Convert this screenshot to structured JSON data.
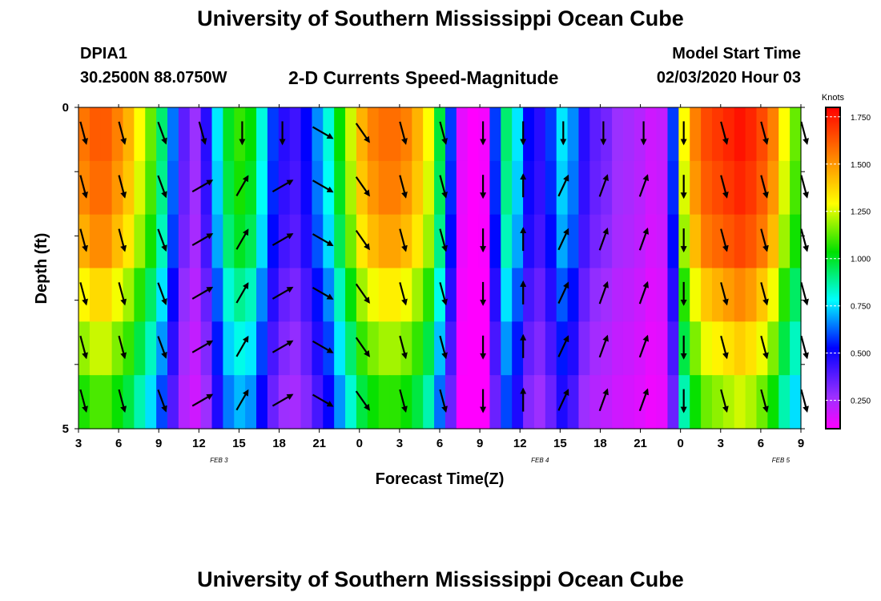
{
  "header": {
    "title": "University of Southern Mississippi Ocean Cube",
    "station_id": "DPIA1",
    "station_coords": "30.2500N 88.0750W",
    "chart_title": "2-D Currents Speed-Magnitude",
    "model_start_label": "Model Start Time",
    "model_start_value": "02/03/2020 Hour 03"
  },
  "footer": {
    "title": "University of Southern Mississippi Ocean Cube"
  },
  "colors": {
    "background": "#ffffff",
    "text": "#000000",
    "arrow": "#000000"
  },
  "chart_data": {
    "type": "heatmap",
    "title": "2-D Currents Speed-Magnitude",
    "xlabel": "Forecast Time(Z)",
    "ylabel": "Depth (ft)",
    "x_ticks": [
      "3",
      "6",
      "9",
      "12",
      "15",
      "18",
      "21",
      "0",
      "3",
      "6",
      "9",
      "12",
      "15",
      "18",
      "21",
      "0",
      "3",
      "6",
      "9"
    ],
    "date_labels": [
      {
        "label": "FEB 3",
        "at_tick": 3
      },
      {
        "label": "FEB 4",
        "at_tick": 11
      },
      {
        "label": "FEB 5",
        "at_tick": 17
      }
    ],
    "y_tick_labels": [
      "0",
      "",
      "",
      "",
      "",
      "5"
    ],
    "ylim": [
      0,
      5
    ],
    "colorbar": {
      "unit": "Knots",
      "ticks": [
        "0.250",
        "0.500",
        "0.750",
        "1.000",
        "1.250",
        "1.500",
        "1.750"
      ],
      "range": [
        0.1,
        1.8
      ]
    },
    "speed_profile_hourly": [
      1.48,
      1.55,
      1.55,
      1.45,
      1.35,
      1.2,
      1.05,
      0.85,
      0.6,
      0.38,
      0.3,
      0.45,
      0.7,
      0.92,
      1.0,
      0.95,
      0.75,
      0.55,
      0.45,
      0.42,
      0.5,
      0.62,
      0.75,
      0.95,
      1.15,
      1.35,
      1.45,
      1.5,
      1.5,
      1.45,
      1.35,
      1.2,
      0.9,
      0.55,
      0.15,
      0.1,
      0.12,
      0.55,
      0.85,
      0.7,
      0.5,
      0.45,
      0.55,
      0.7,
      0.62,
      0.45,
      0.38,
      0.35,
      0.3,
      0.28,
      0.25,
      0.2,
      0.22,
      0.55,
      1.2,
      1.45,
      1.6,
      1.65,
      1.7,
      1.75,
      1.7,
      1.6,
      1.45,
      1.2,
      1.05
    ],
    "depth_factors": [
      1.0,
      0.97,
      0.92,
      0.82,
      0.74,
      0.66
    ],
    "vectors": {
      "tick_columns": [
        0,
        1,
        2,
        3,
        4,
        5,
        6,
        7,
        8,
        9,
        10,
        11,
        12,
        13,
        14,
        15,
        16,
        17,
        18
      ],
      "direction_deg": [
        165,
        165,
        160,
        60,
        30,
        60,
        120,
        145,
        165,
        165,
        180,
        0,
        25,
        20,
        20,
        180,
        165,
        165,
        165
      ],
      "surface_directions": {
        "3": 165,
        "4": 180,
        "5": 180,
        "6": 120,
        "11": 180,
        "12": 180,
        "13": 180,
        "14": 180
      }
    },
    "grid": false,
    "legend": "colorbar-right"
  }
}
